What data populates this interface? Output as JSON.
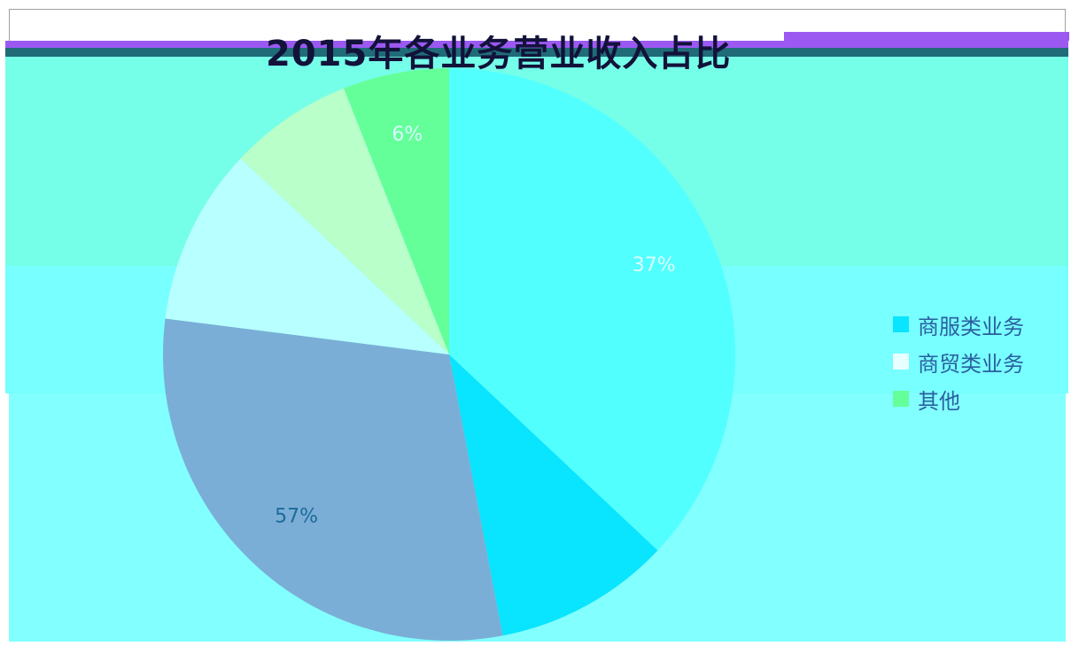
{
  "chart_data": {
    "type": "pie",
    "title": "2015年各业务营业收入占比",
    "slices": [
      {
        "label": "37%",
        "value": 37,
        "color": "#52ffff",
        "legend": ""
      },
      {
        "label": "",
        "value": 10,
        "color": "#09e4ff",
        "legend": ""
      },
      {
        "label": "57%",
        "value": 30,
        "color": "#7baed6",
        "legend": ""
      },
      {
        "label": "",
        "value": 10,
        "color": "#b8ffff",
        "legend": ""
      },
      {
        "label": "",
        "value": 7,
        "color": "#b9ffca",
        "legend": ""
      },
      {
        "label": "6%",
        "value": 6,
        "color": "#65ff9a",
        "legend": "其他"
      }
    ],
    "legend": {
      "placement": "right",
      "items": [
        {
          "label": "商服类业务",
          "color": "#09e4ff"
        },
        {
          "label": "商贸类业务",
          "color": "#e8ffff"
        },
        {
          "label": "其他",
          "color": "#65ff9a"
        }
      ]
    },
    "label_colors": {
      "light": "#d8ffff",
      "dark": "#1d6a9a"
    }
  }
}
